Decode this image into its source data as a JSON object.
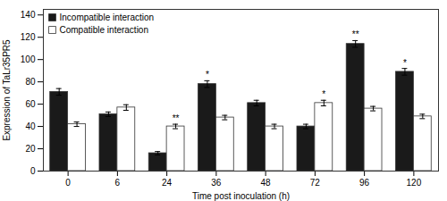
{
  "chart_data": {
    "type": "bar",
    "categories": [
      "0",
      "6",
      "24",
      "36",
      "48",
      "72",
      "96",
      "120"
    ],
    "series": [
      {
        "name": "Incompatible interaction",
        "color": "#1a1a1a",
        "values": [
          71,
          51,
          16,
          78,
          61,
          40,
          114,
          89
        ],
        "errors": [
          3,
          2,
          1.5,
          3,
          2.5,
          2,
          3,
          3
        ]
      },
      {
        "name": "Compatible interaction",
        "color": "#ffffff",
        "values": [
          42,
          57,
          40,
          48,
          40,
          61,
          56,
          49
        ],
        "errors": [
          2,
          2.5,
          2,
          2,
          2,
          2.5,
          2,
          2
        ]
      }
    ],
    "ylim": [
      0,
      145
    ],
    "yticks": [
      0,
      20,
      40,
      60,
      80,
      100,
      120,
      140
    ],
    "xlabel": "Time post inoculation (h)",
    "ylabel": "Expression of TaLr35PR5",
    "annotations": [
      {
        "category": "24",
        "text": "**"
      },
      {
        "category": "36",
        "text": "*"
      },
      {
        "category": "72",
        "text": "*"
      },
      {
        "category": "96",
        "text": "**"
      },
      {
        "category": "120",
        "text": "*"
      }
    ],
    "legend": "upper left",
    "grid": false
  }
}
